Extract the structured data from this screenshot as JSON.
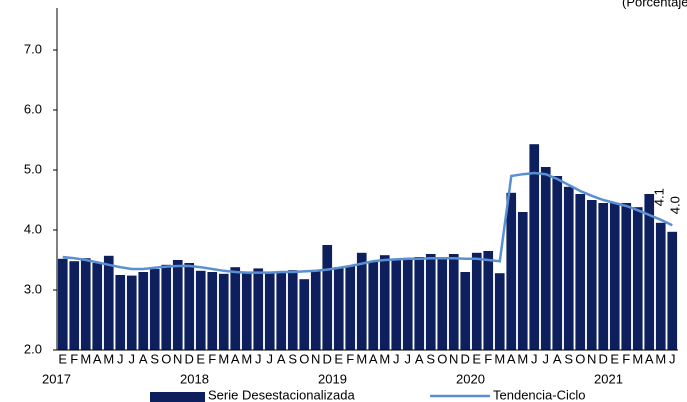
{
  "chart_data": {
    "type": "bar",
    "subtitle": "(Porcentaje)",
    "categories": [
      "E",
      "F",
      "M",
      "A",
      "M",
      "J",
      "J",
      "A",
      "S",
      "O",
      "N",
      "D",
      "E",
      "F",
      "M",
      "A",
      "M",
      "J",
      "J",
      "A",
      "S",
      "O",
      "N",
      "D",
      "E",
      "F",
      "M",
      "A",
      "M",
      "J",
      "J",
      "A",
      "S",
      "O",
      "N",
      "D",
      "E",
      "F",
      "M",
      "A",
      "M",
      "J",
      "J",
      "A",
      "S",
      "O",
      "N",
      "D",
      "E",
      "F",
      "M",
      "A",
      "M",
      "J"
    ],
    "year_labels": [
      "2017",
      "2018",
      "2019",
      "2020",
      "2021"
    ],
    "series": [
      {
        "name": "Serie Desestacionalizada",
        "type": "bar",
        "color": "#0d1f5c",
        "values": [
          3.52,
          3.48,
          3.53,
          3.45,
          3.57,
          3.25,
          3.24,
          3.3,
          3.35,
          3.42,
          3.5,
          3.45,
          3.32,
          3.3,
          3.27,
          3.38,
          3.28,
          3.36,
          3.29,
          3.3,
          3.33,
          3.18,
          3.33,
          3.75,
          3.38,
          3.4,
          3.62,
          3.48,
          3.58,
          3.5,
          3.52,
          3.55,
          3.6,
          3.52,
          3.6,
          3.3,
          3.62,
          3.65,
          3.28,
          4.62,
          4.3,
          5.43,
          5.05,
          4.9,
          4.72,
          4.6,
          4.5,
          4.45,
          4.45,
          4.45,
          4.38,
          4.6,
          4.12,
          3.97
        ],
        "value_labels": [
          null,
          null,
          null,
          null,
          null,
          null,
          null,
          null,
          null,
          null,
          null,
          null,
          null,
          null,
          null,
          null,
          null,
          null,
          null,
          null,
          null,
          null,
          null,
          null,
          null,
          null,
          null,
          null,
          null,
          null,
          null,
          null,
          null,
          null,
          null,
          null,
          null,
          null,
          null,
          null,
          null,
          null,
          null,
          null,
          null,
          null,
          null,
          null,
          null,
          null,
          null,
          null,
          null,
          "4.0"
        ]
      },
      {
        "name": "Tendencia-Ciclo",
        "type": "line",
        "color": "#5b8fd4",
        "values": [
          3.55,
          3.53,
          3.5,
          3.46,
          3.42,
          3.38,
          3.35,
          3.35,
          3.37,
          3.39,
          3.4,
          3.4,
          3.38,
          3.35,
          3.32,
          3.3,
          3.29,
          3.29,
          3.29,
          3.3,
          3.3,
          3.31,
          3.32,
          3.34,
          3.37,
          3.4,
          3.44,
          3.48,
          3.5,
          3.51,
          3.52,
          3.52,
          3.53,
          3.53,
          3.53,
          3.52,
          3.52,
          3.5,
          3.48,
          4.9,
          4.93,
          4.95,
          4.93,
          4.85,
          4.75,
          4.65,
          4.57,
          4.5,
          4.45,
          4.4,
          4.33,
          4.25,
          4.17,
          4.08
        ],
        "value_labels": [
          null,
          null,
          null,
          null,
          null,
          null,
          null,
          null,
          null,
          null,
          null,
          null,
          null,
          null,
          null,
          null,
          null,
          null,
          null,
          null,
          null,
          null,
          null,
          null,
          null,
          null,
          null,
          null,
          null,
          null,
          null,
          null,
          null,
          null,
          null,
          null,
          null,
          null,
          null,
          null,
          null,
          null,
          null,
          null,
          null,
          null,
          null,
          null,
          null,
          null,
          null,
          null,
          null,
          "4.1"
        ]
      }
    ],
    "ylim": [
      2,
      7.7
    ],
    "yticks": [
      {
        "value": 2,
        "label": "2.0"
      },
      {
        "value": 3,
        "label": "3.0"
      },
      {
        "value": 4,
        "label": "4.0"
      },
      {
        "value": 5,
        "label": "5.0"
      },
      {
        "value": 6,
        "label": "6.0"
      },
      {
        "value": 7,
        "label": "7.0"
      }
    ]
  }
}
